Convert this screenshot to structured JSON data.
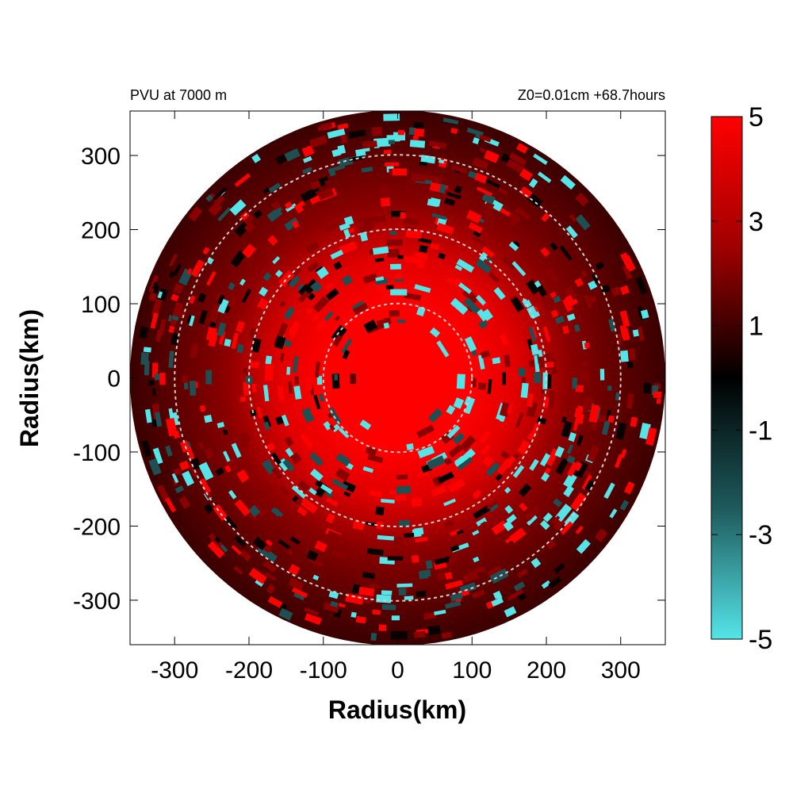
{
  "chart_data": {
    "type": "heatmap",
    "title_left": "PVU at  7000 m",
    "title_right": "Z0=0.01cm  +68.7hours",
    "xlabel": "Radius(km)",
    "ylabel": "Radius(km)",
    "xlim": [
      -360,
      360
    ],
    "ylim": [
      -360,
      360
    ],
    "x_ticks": [
      -300,
      -200,
      -100,
      0,
      100,
      200,
      300
    ],
    "y_ticks": [
      300,
      200,
      100,
      0,
      -100,
      -200,
      -300
    ],
    "data_radius_km": 360,
    "reference_circles_km": [
      100,
      200,
      300
    ],
    "colorbar": {
      "range": [
        -5,
        5
      ],
      "ticks": [
        5,
        3,
        1,
        -1,
        -3,
        -5
      ],
      "colors": {
        "high": "#ff0000",
        "mid": "#000000",
        "low": "#55e5e8"
      }
    },
    "field_description_values": {
      "core_pvu": 5,
      "background_pvu": 1.5
    }
  }
}
